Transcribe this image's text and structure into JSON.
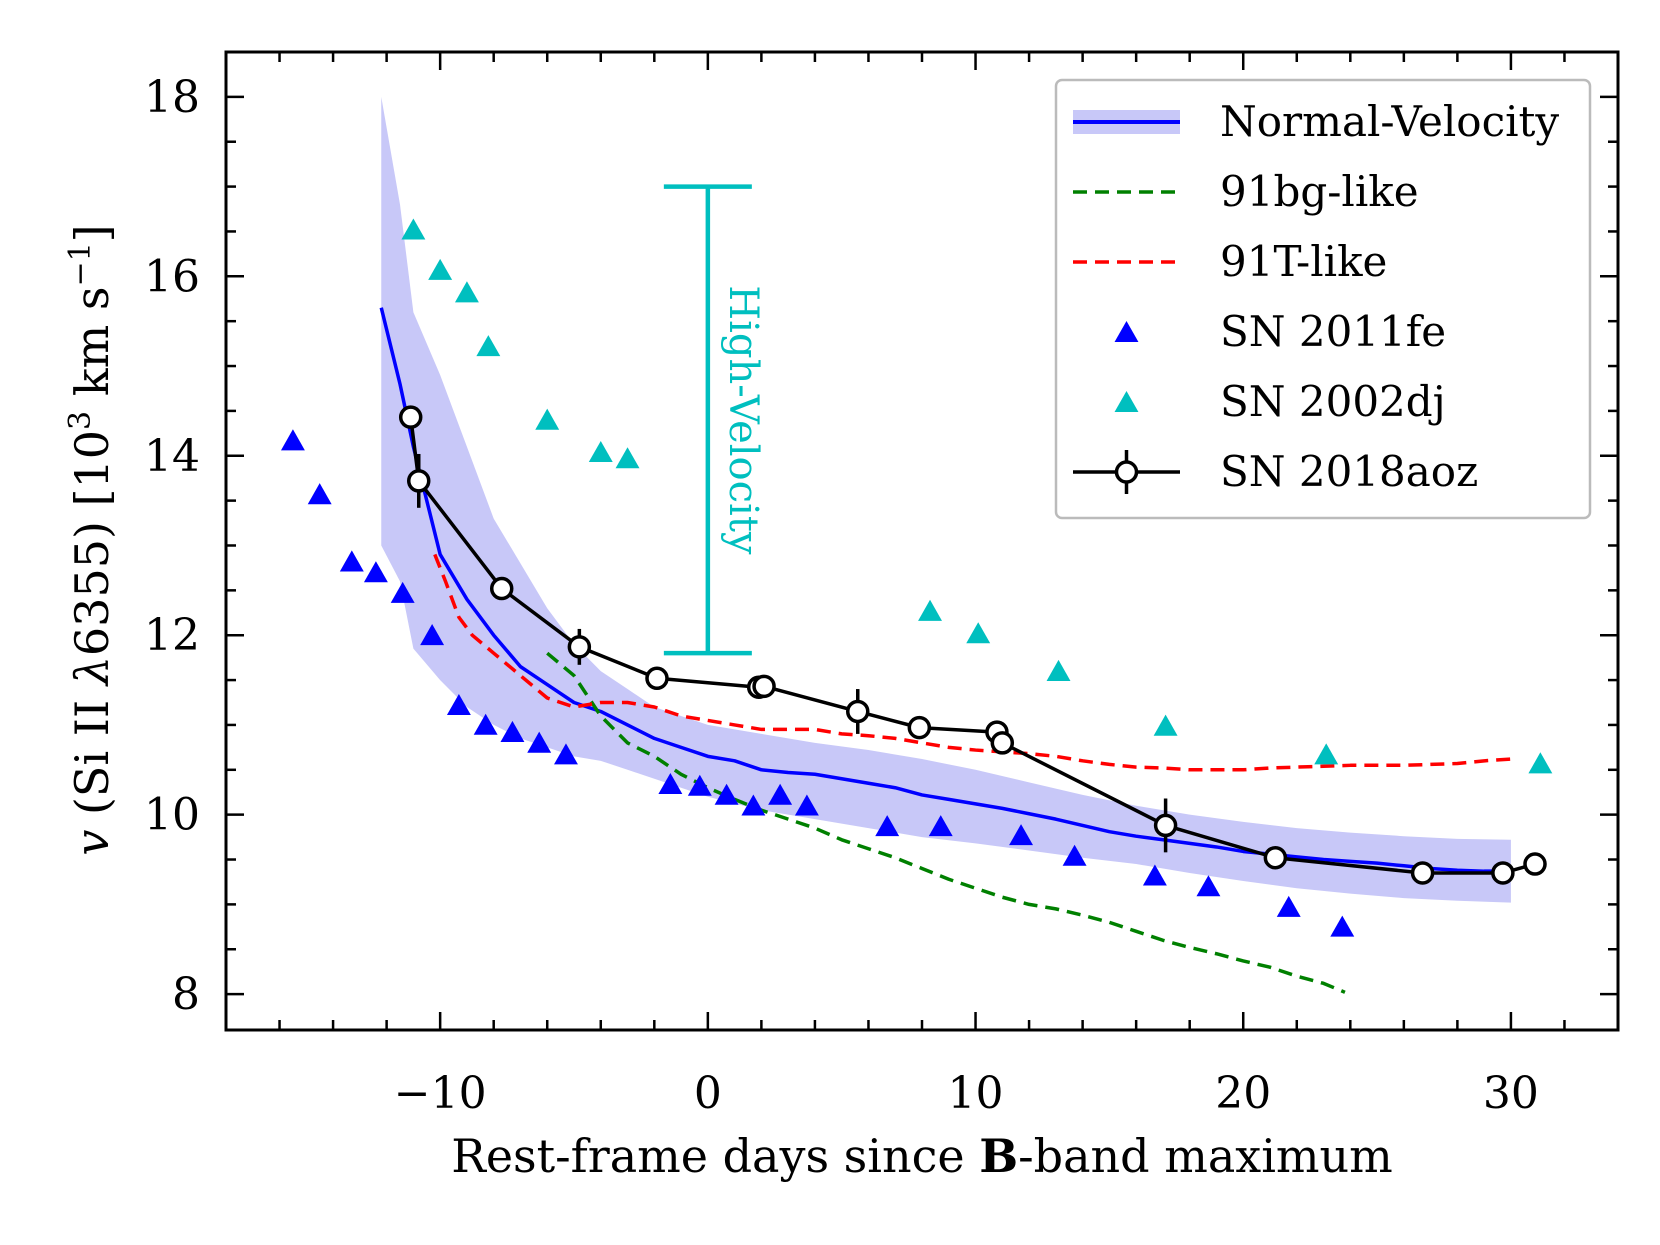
{
  "chart_data": {
    "type": "line",
    "title": "",
    "xlabel": "Rest-frame days since B-band maximum",
    "xlabel_parts": {
      "pre": "Rest-frame days since ",
      "bold": "B",
      "post": "-band maximum"
    },
    "ylabel": "v (Si II λ6355) [10³ km s⁻¹]",
    "ylabel_parts": {
      "var": "v",
      "species": " (Si II ",
      "lambda": "λ",
      "wave": "6355) [10",
      "exp": "3",
      "unit": " km s",
      "unit_exp": "−1",
      "close": "]"
    },
    "xlim": [
      -18,
      34
    ],
    "ylim": [
      7.6,
      18.5
    ],
    "x_ticks": [
      -10,
      0,
      10,
      20,
      30
    ],
    "x_tick_labels": [
      "−10",
      "0",
      "10",
      "20",
      "30"
    ],
    "y_ticks": [
      8,
      10,
      12,
      14,
      16,
      18
    ],
    "y_tick_labels": [
      "8",
      "10",
      "12",
      "14",
      "16",
      "18"
    ],
    "legend_position": "top-right",
    "legend": [
      {
        "label": "Normal-Velocity",
        "style": "band-line",
        "color": "#0000ff",
        "band_color": "#c8c8f8"
      },
      {
        "label": "91bg-like",
        "style": "dashed",
        "color": "#008000"
      },
      {
        "label": "91T-like",
        "style": "dashed",
        "color": "#ff0000"
      },
      {
        "label": "SN 2011fe",
        "style": "triangle",
        "color": "#0000ff"
      },
      {
        "label": "SN 2002dj",
        "style": "triangle",
        "color": "#00bfbf"
      },
      {
        "label": "SN 2018aoz",
        "style": "circle-errorbar",
        "color": "#000000"
      }
    ],
    "annotation": {
      "label": "High-Velocity",
      "x": 0,
      "y_low": 11.8,
      "y_high": 17.0,
      "color": "#00bfbf"
    },
    "series": [
      {
        "name": "Normal-Velocity",
        "kind": "line",
        "color": "#0000ff",
        "x": [
          -12.2,
          -11.5,
          -11,
          -10,
          -9,
          -8,
          -7,
          -6,
          -5,
          -4,
          -3,
          -2,
          -1,
          0,
          1,
          2,
          3,
          4,
          5,
          6,
          7,
          8,
          9,
          10,
          11,
          12,
          13,
          14,
          15,
          16,
          17,
          18,
          19,
          20,
          21,
          22,
          23,
          24,
          25,
          26,
          27,
          28,
          29,
          30
        ],
        "y": [
          15.65,
          14.8,
          14.1,
          12.9,
          12.4,
          12.0,
          11.65,
          11.45,
          11.25,
          11.15,
          11.0,
          10.85,
          10.75,
          10.65,
          10.6,
          10.5,
          10.47,
          10.45,
          10.4,
          10.35,
          10.3,
          10.22,
          10.17,
          10.12,
          10.07,
          10.01,
          9.95,
          9.88,
          9.81,
          9.76,
          9.72,
          9.68,
          9.64,
          9.59,
          9.56,
          9.53,
          9.5,
          9.48,
          9.46,
          9.43,
          9.4,
          9.38,
          9.37,
          9.37
        ]
      },
      {
        "name": "Normal-Velocity band",
        "kind": "band",
        "color": "#c8c8f8",
        "x": [
          -12.2,
          -11.5,
          -11,
          -10,
          -9,
          -8,
          -7,
          -6,
          -5,
          -4,
          -3,
          -2,
          -1,
          0,
          2,
          4,
          6,
          8,
          10,
          12,
          14,
          16,
          18,
          20,
          22,
          24,
          26,
          28,
          30
        ],
        "upper": [
          18.0,
          16.8,
          15.6,
          14.9,
          14.1,
          13.3,
          12.8,
          12.3,
          11.9,
          11.6,
          11.4,
          11.2,
          11.1,
          11.0,
          10.9,
          10.8,
          10.72,
          10.62,
          10.5,
          10.36,
          10.22,
          10.1,
          10.0,
          9.92,
          9.85,
          9.8,
          9.76,
          9.73,
          9.72
        ],
        "lower": [
          13.0,
          12.6,
          11.85,
          11.5,
          11.2,
          11.0,
          10.85,
          10.75,
          10.65,
          10.6,
          10.5,
          10.4,
          10.3,
          10.2,
          10.05,
          9.95,
          9.85,
          9.75,
          9.68,
          9.6,
          9.52,
          9.45,
          9.35,
          9.26,
          9.18,
          9.12,
          9.07,
          9.04,
          9.02
        ]
      },
      {
        "name": "91bg-like",
        "kind": "dashed",
        "color": "#008000",
        "x": [
          -6,
          -5,
          -4,
          -3,
          -2,
          -1,
          0,
          1,
          2,
          3,
          4,
          5,
          6,
          7,
          8,
          9,
          10,
          11,
          12,
          13,
          14,
          15,
          16,
          17,
          18,
          19,
          20,
          21,
          22,
          23,
          23.8
        ],
        "y": [
          11.8,
          11.55,
          11.1,
          10.8,
          10.65,
          10.45,
          10.3,
          10.17,
          10.05,
          9.95,
          9.85,
          9.72,
          9.62,
          9.52,
          9.4,
          9.28,
          9.18,
          9.08,
          9.0,
          8.95,
          8.88,
          8.8,
          8.7,
          8.6,
          8.52,
          8.45,
          8.37,
          8.3,
          8.2,
          8.12,
          8.02
        ]
      },
      {
        "name": "91T-like",
        "kind": "dashed",
        "color": "#ff0000",
        "x": [
          -10.2,
          -9.8,
          -9.3,
          -8.8,
          -8,
          -7,
          -6,
          -5,
          -4,
          -3,
          -2,
          -1,
          0,
          1,
          2,
          3,
          4,
          5,
          6,
          7,
          8,
          9,
          10,
          11,
          12,
          13,
          14,
          15,
          16,
          17,
          18,
          19,
          20,
          21,
          22,
          23,
          24,
          25,
          26,
          27,
          28,
          29,
          30
        ],
        "y": [
          12.9,
          12.6,
          12.2,
          12.0,
          11.8,
          11.55,
          11.3,
          11.2,
          11.25,
          11.25,
          11.2,
          11.1,
          11.05,
          11.0,
          10.95,
          10.95,
          10.95,
          10.9,
          10.88,
          10.85,
          10.8,
          10.75,
          10.72,
          10.7,
          10.68,
          10.65,
          10.6,
          10.56,
          10.53,
          10.52,
          10.5,
          10.5,
          10.5,
          10.52,
          10.53,
          10.54,
          10.55,
          10.55,
          10.55,
          10.56,
          10.57,
          10.6,
          10.62
        ]
      },
      {
        "name": "SN 2011fe",
        "kind": "triangle",
        "color": "#0000ff",
        "x": [
          -15.5,
          -14.5,
          -13.3,
          -12.4,
          -11.4,
          -10.3,
          -9.3,
          -8.3,
          -7.3,
          -6.3,
          -5.3,
          -1.4,
          -0.3,
          0.7,
          1.7,
          2.7,
          3.7,
          6.7,
          8.7,
          11.7,
          13.7,
          16.7,
          18.7,
          21.7,
          23.7
        ],
        "y": [
          14.15,
          13.55,
          12.8,
          12.68,
          12.45,
          11.98,
          11.2,
          10.98,
          10.9,
          10.78,
          10.65,
          10.32,
          10.3,
          10.2,
          10.08,
          10.2,
          10.08,
          9.85,
          9.85,
          9.75,
          9.52,
          9.3,
          9.18,
          8.95,
          8.73
        ]
      },
      {
        "name": "SN 2002dj",
        "kind": "triangle",
        "color": "#00bfbf",
        "x": [
          -11,
          -10,
          -9,
          -8.2,
          -6,
          -4,
          -3,
          8.3,
          10.1,
          13.1,
          17.1,
          23.1,
          31.1
        ],
        "y": [
          16.5,
          16.05,
          15.8,
          15.2,
          14.38,
          14.02,
          13.95,
          12.25,
          12.0,
          11.58,
          10.97,
          10.65,
          10.55
        ]
      },
      {
        "name": "SN 2018aoz",
        "kind": "circle",
        "color": "#000000",
        "x": [
          -11.1,
          -10.8,
          -7.7,
          -4.8,
          -1.9,
          1.9,
          2.1,
          5.6,
          7.9,
          10.8,
          11.0,
          17.1,
          21.2,
          26.7,
          29.7,
          30.9
        ],
        "y": [
          14.43,
          13.72,
          12.52,
          11.87,
          11.52,
          11.42,
          11.43,
          11.15,
          10.97,
          10.92,
          10.8,
          9.88,
          9.52,
          9.35,
          9.35,
          9.45
        ],
        "yerr": [
          0.1,
          0.3,
          0.1,
          0.2,
          0.1,
          0.1,
          0.1,
          0.25,
          0.1,
          0.1,
          0.1,
          0.3,
          0.1,
          0.1,
          0.1,
          0.1
        ]
      }
    ]
  }
}
